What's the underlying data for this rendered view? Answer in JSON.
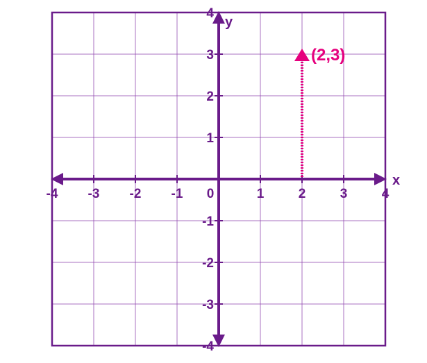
{
  "chart_data": {
    "type": "scatter",
    "title": "",
    "xlabel": "x",
    "ylabel": "y",
    "xlim": [
      -4,
      4
    ],
    "ylim": [
      -4,
      4
    ],
    "grid": true,
    "x_ticks": [
      "-4",
      "-3",
      "-2",
      "-1",
      "0",
      "1",
      "2",
      "3",
      "4"
    ],
    "y_ticks": [
      "4",
      "3",
      "2",
      "1",
      "-1",
      "-2",
      "-3",
      "-4"
    ],
    "points": [
      {
        "x": 2,
        "y": 3,
        "label": "(2,3)"
      }
    ]
  },
  "colors": {
    "axis": "#6a1b8a",
    "grid": "#8e44ad",
    "point": "#e6007e"
  }
}
